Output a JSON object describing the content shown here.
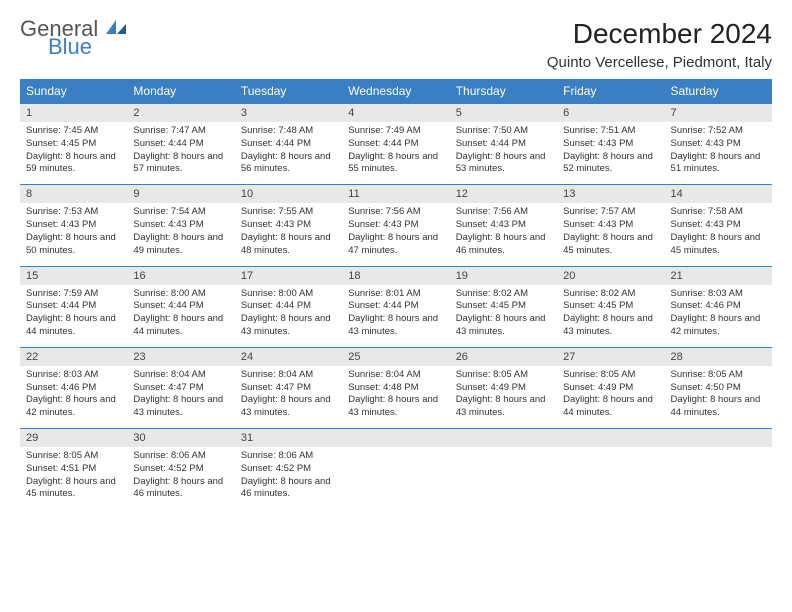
{
  "logo": {
    "line1": "General",
    "line2": "Blue"
  },
  "title": "December 2024",
  "location": "Quinto Vercellese, Piedmont, Italy",
  "colors": {
    "header_bg": "#3a7fc4",
    "header_text": "#ffffff",
    "daynum_bg": "#e8e8e8",
    "border": "#3a7fc4",
    "body_text": "#333333",
    "logo_blue": "#3a7fc4",
    "logo_gray": "#555555"
  },
  "day_headers": [
    "Sunday",
    "Monday",
    "Tuesday",
    "Wednesday",
    "Thursday",
    "Friday",
    "Saturday"
  ],
  "weeks": [
    [
      {
        "n": "1",
        "sr": "Sunrise: 7:45 AM",
        "ss": "Sunset: 4:45 PM",
        "dl": "Daylight: 8 hours and 59 minutes."
      },
      {
        "n": "2",
        "sr": "Sunrise: 7:47 AM",
        "ss": "Sunset: 4:44 PM",
        "dl": "Daylight: 8 hours and 57 minutes."
      },
      {
        "n": "3",
        "sr": "Sunrise: 7:48 AM",
        "ss": "Sunset: 4:44 PM",
        "dl": "Daylight: 8 hours and 56 minutes."
      },
      {
        "n": "4",
        "sr": "Sunrise: 7:49 AM",
        "ss": "Sunset: 4:44 PM",
        "dl": "Daylight: 8 hours and 55 minutes."
      },
      {
        "n": "5",
        "sr": "Sunrise: 7:50 AM",
        "ss": "Sunset: 4:44 PM",
        "dl": "Daylight: 8 hours and 53 minutes."
      },
      {
        "n": "6",
        "sr": "Sunrise: 7:51 AM",
        "ss": "Sunset: 4:43 PM",
        "dl": "Daylight: 8 hours and 52 minutes."
      },
      {
        "n": "7",
        "sr": "Sunrise: 7:52 AM",
        "ss": "Sunset: 4:43 PM",
        "dl": "Daylight: 8 hours and 51 minutes."
      }
    ],
    [
      {
        "n": "8",
        "sr": "Sunrise: 7:53 AM",
        "ss": "Sunset: 4:43 PM",
        "dl": "Daylight: 8 hours and 50 minutes."
      },
      {
        "n": "9",
        "sr": "Sunrise: 7:54 AM",
        "ss": "Sunset: 4:43 PM",
        "dl": "Daylight: 8 hours and 49 minutes."
      },
      {
        "n": "10",
        "sr": "Sunrise: 7:55 AM",
        "ss": "Sunset: 4:43 PM",
        "dl": "Daylight: 8 hours and 48 minutes."
      },
      {
        "n": "11",
        "sr": "Sunrise: 7:56 AM",
        "ss": "Sunset: 4:43 PM",
        "dl": "Daylight: 8 hours and 47 minutes."
      },
      {
        "n": "12",
        "sr": "Sunrise: 7:56 AM",
        "ss": "Sunset: 4:43 PM",
        "dl": "Daylight: 8 hours and 46 minutes."
      },
      {
        "n": "13",
        "sr": "Sunrise: 7:57 AM",
        "ss": "Sunset: 4:43 PM",
        "dl": "Daylight: 8 hours and 45 minutes."
      },
      {
        "n": "14",
        "sr": "Sunrise: 7:58 AM",
        "ss": "Sunset: 4:43 PM",
        "dl": "Daylight: 8 hours and 45 minutes."
      }
    ],
    [
      {
        "n": "15",
        "sr": "Sunrise: 7:59 AM",
        "ss": "Sunset: 4:44 PM",
        "dl": "Daylight: 8 hours and 44 minutes."
      },
      {
        "n": "16",
        "sr": "Sunrise: 8:00 AM",
        "ss": "Sunset: 4:44 PM",
        "dl": "Daylight: 8 hours and 44 minutes."
      },
      {
        "n": "17",
        "sr": "Sunrise: 8:00 AM",
        "ss": "Sunset: 4:44 PM",
        "dl": "Daylight: 8 hours and 43 minutes."
      },
      {
        "n": "18",
        "sr": "Sunrise: 8:01 AM",
        "ss": "Sunset: 4:44 PM",
        "dl": "Daylight: 8 hours and 43 minutes."
      },
      {
        "n": "19",
        "sr": "Sunrise: 8:02 AM",
        "ss": "Sunset: 4:45 PM",
        "dl": "Daylight: 8 hours and 43 minutes."
      },
      {
        "n": "20",
        "sr": "Sunrise: 8:02 AM",
        "ss": "Sunset: 4:45 PM",
        "dl": "Daylight: 8 hours and 43 minutes."
      },
      {
        "n": "21",
        "sr": "Sunrise: 8:03 AM",
        "ss": "Sunset: 4:46 PM",
        "dl": "Daylight: 8 hours and 42 minutes."
      }
    ],
    [
      {
        "n": "22",
        "sr": "Sunrise: 8:03 AM",
        "ss": "Sunset: 4:46 PM",
        "dl": "Daylight: 8 hours and 42 minutes."
      },
      {
        "n": "23",
        "sr": "Sunrise: 8:04 AM",
        "ss": "Sunset: 4:47 PM",
        "dl": "Daylight: 8 hours and 43 minutes."
      },
      {
        "n": "24",
        "sr": "Sunrise: 8:04 AM",
        "ss": "Sunset: 4:47 PM",
        "dl": "Daylight: 8 hours and 43 minutes."
      },
      {
        "n": "25",
        "sr": "Sunrise: 8:04 AM",
        "ss": "Sunset: 4:48 PM",
        "dl": "Daylight: 8 hours and 43 minutes."
      },
      {
        "n": "26",
        "sr": "Sunrise: 8:05 AM",
        "ss": "Sunset: 4:49 PM",
        "dl": "Daylight: 8 hours and 43 minutes."
      },
      {
        "n": "27",
        "sr": "Sunrise: 8:05 AM",
        "ss": "Sunset: 4:49 PM",
        "dl": "Daylight: 8 hours and 44 minutes."
      },
      {
        "n": "28",
        "sr": "Sunrise: 8:05 AM",
        "ss": "Sunset: 4:50 PM",
        "dl": "Daylight: 8 hours and 44 minutes."
      }
    ],
    [
      {
        "n": "29",
        "sr": "Sunrise: 8:05 AM",
        "ss": "Sunset: 4:51 PM",
        "dl": "Daylight: 8 hours and 45 minutes."
      },
      {
        "n": "30",
        "sr": "Sunrise: 8:06 AM",
        "ss": "Sunset: 4:52 PM",
        "dl": "Daylight: 8 hours and 46 minutes."
      },
      {
        "n": "31",
        "sr": "Sunrise: 8:06 AM",
        "ss": "Sunset: 4:52 PM",
        "dl": "Daylight: 8 hours and 46 minutes."
      },
      {
        "empty": true
      },
      {
        "empty": true
      },
      {
        "empty": true
      },
      {
        "empty": true
      }
    ]
  ]
}
